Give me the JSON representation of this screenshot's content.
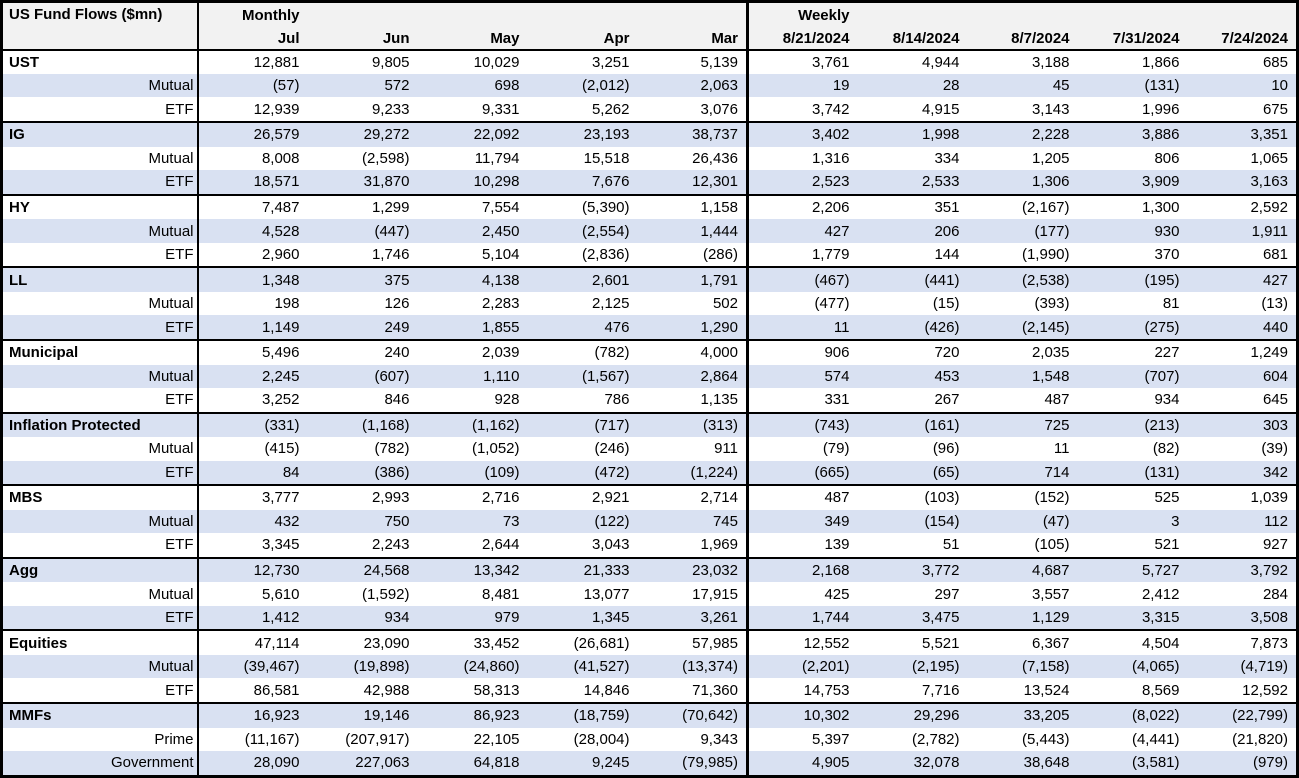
{
  "header": {
    "title": "US Fund Flows ($mn)",
    "monthly_label": "Monthly",
    "weekly_label": "Weekly"
  },
  "colors": {
    "stripe": "#d9e1f2",
    "header_bg": "#f2f2f2",
    "border": "#000000",
    "text": "#000000"
  },
  "chart_data": {
    "type": "table",
    "title": "US Fund Flows ($mn)",
    "units": "$mn",
    "column_group_labels": [
      "Monthly",
      "Weekly"
    ],
    "monthly_columns": [
      "Jul",
      "Jun",
      "May",
      "Apr",
      "Mar"
    ],
    "weekly_columns": [
      "8/21/2024",
      "8/14/2024",
      "8/7/2024",
      "7/31/2024",
      "7/24/2024"
    ],
    "negative_format": "parentheses",
    "groups": [
      {
        "name": "UST",
        "rows": [
          {
            "label": "UST",
            "header": true,
            "monthly": [
              "12,881",
              "9,805",
              "10,029",
              "3,251",
              "5,139"
            ],
            "weekly": [
              "3,761",
              "4,944",
              "3,188",
              "1,866",
              "685"
            ]
          },
          {
            "label": "Mutual",
            "header": false,
            "monthly": [
              "(57)",
              "572",
              "698",
              "(2,012)",
              "2,063"
            ],
            "weekly": [
              "19",
              "28",
              "45",
              "(131)",
              "10"
            ]
          },
          {
            "label": "ETF",
            "header": false,
            "monthly": [
              "12,939",
              "9,233",
              "9,331",
              "5,262",
              "3,076"
            ],
            "weekly": [
              "3,742",
              "4,915",
              "3,143",
              "1,996",
              "675"
            ]
          }
        ]
      },
      {
        "name": "IG",
        "rows": [
          {
            "label": "IG",
            "header": true,
            "monthly": [
              "26,579",
              "29,272",
              "22,092",
              "23,193",
              "38,737"
            ],
            "weekly": [
              "3,402",
              "1,998",
              "2,228",
              "3,886",
              "3,351"
            ]
          },
          {
            "label": "Mutual",
            "header": false,
            "monthly": [
              "8,008",
              "(2,598)",
              "11,794",
              "15,518",
              "26,436"
            ],
            "weekly": [
              "1,316",
              "334",
              "1,205",
              "806",
              "1,065"
            ]
          },
          {
            "label": "ETF",
            "header": false,
            "monthly": [
              "18,571",
              "31,870",
              "10,298",
              "7,676",
              "12,301"
            ],
            "weekly": [
              "2,523",
              "2,533",
              "1,306",
              "3,909",
              "3,163"
            ]
          }
        ]
      },
      {
        "name": "HY",
        "rows": [
          {
            "label": "HY",
            "header": true,
            "monthly": [
              "7,487",
              "1,299",
              "7,554",
              "(5,390)",
              "1,158"
            ],
            "weekly": [
              "2,206",
              "351",
              "(2,167)",
              "1,300",
              "2,592"
            ]
          },
          {
            "label": "Mutual",
            "header": false,
            "monthly": [
              "4,528",
              "(447)",
              "2,450",
              "(2,554)",
              "1,444"
            ],
            "weekly": [
              "427",
              "206",
              "(177)",
              "930",
              "1,911"
            ]
          },
          {
            "label": "ETF",
            "header": false,
            "monthly": [
              "2,960",
              "1,746",
              "5,104",
              "(2,836)",
              "(286)"
            ],
            "weekly": [
              "1,779",
              "144",
              "(1,990)",
              "370",
              "681"
            ]
          }
        ]
      },
      {
        "name": "LL",
        "rows": [
          {
            "label": "LL",
            "header": true,
            "monthly": [
              "1,348",
              "375",
              "4,138",
              "2,601",
              "1,791"
            ],
            "weekly": [
              "(467)",
              "(441)",
              "(2,538)",
              "(195)",
              "427"
            ]
          },
          {
            "label": "Mutual",
            "header": false,
            "monthly": [
              "198",
              "126",
              "2,283",
              "2,125",
              "502"
            ],
            "weekly": [
              "(477)",
              "(15)",
              "(393)",
              "81",
              "(13)"
            ]
          },
          {
            "label": "ETF",
            "header": false,
            "monthly": [
              "1,149",
              "249",
              "1,855",
              "476",
              "1,290"
            ],
            "weekly": [
              "11",
              "(426)",
              "(2,145)",
              "(275)",
              "440"
            ]
          }
        ]
      },
      {
        "name": "Municipal",
        "rows": [
          {
            "label": "Municipal",
            "header": true,
            "monthly": [
              "5,496",
              "240",
              "2,039",
              "(782)",
              "4,000"
            ],
            "weekly": [
              "906",
              "720",
              "2,035",
              "227",
              "1,249"
            ]
          },
          {
            "label": "Mutual",
            "header": false,
            "monthly": [
              "2,245",
              "(607)",
              "1,110",
              "(1,567)",
              "2,864"
            ],
            "weekly": [
              "574",
              "453",
              "1,548",
              "(707)",
              "604"
            ]
          },
          {
            "label": "ETF",
            "header": false,
            "monthly": [
              "3,252",
              "846",
              "928",
              "786",
              "1,135"
            ],
            "weekly": [
              "331",
              "267",
              "487",
              "934",
              "645"
            ]
          }
        ]
      },
      {
        "name": "Inflation Protected",
        "rows": [
          {
            "label": "Inflation Protected",
            "header": true,
            "monthly": [
              "(331)",
              "(1,168)",
              "(1,162)",
              "(717)",
              "(313)"
            ],
            "weekly": [
              "(743)",
              "(161)",
              "725",
              "(213)",
              "303"
            ]
          },
          {
            "label": "Mutual",
            "header": false,
            "monthly": [
              "(415)",
              "(782)",
              "(1,052)",
              "(246)",
              "911"
            ],
            "weekly": [
              "(79)",
              "(96)",
              "11",
              "(82)",
              "(39)"
            ]
          },
          {
            "label": "ETF",
            "header": false,
            "monthly": [
              "84",
              "(386)",
              "(109)",
              "(472)",
              "(1,224)"
            ],
            "weekly": [
              "(665)",
              "(65)",
              "714",
              "(131)",
              "342"
            ]
          }
        ]
      },
      {
        "name": "MBS",
        "rows": [
          {
            "label": "MBS",
            "header": true,
            "monthly": [
              "3,777",
              "2,993",
              "2,716",
              "2,921",
              "2,714"
            ],
            "weekly": [
              "487",
              "(103)",
              "(152)",
              "525",
              "1,039"
            ]
          },
          {
            "label": "Mutual",
            "header": false,
            "monthly": [
              "432",
              "750",
              "73",
              "(122)",
              "745"
            ],
            "weekly": [
              "349",
              "(154)",
              "(47)",
              "3",
              "112"
            ]
          },
          {
            "label": "ETF",
            "header": false,
            "monthly": [
              "3,345",
              "2,243",
              "2,644",
              "3,043",
              "1,969"
            ],
            "weekly": [
              "139",
              "51",
              "(105)",
              "521",
              "927"
            ]
          }
        ]
      },
      {
        "name": "Agg",
        "rows": [
          {
            "label": "Agg",
            "header": true,
            "monthly": [
              "12,730",
              "24,568",
              "13,342",
              "21,333",
              "23,032"
            ],
            "weekly": [
              "2,168",
              "3,772",
              "4,687",
              "5,727",
              "3,792"
            ]
          },
          {
            "label": "Mutual",
            "header": false,
            "monthly": [
              "5,610",
              "(1,592)",
              "8,481",
              "13,077",
              "17,915"
            ],
            "weekly": [
              "425",
              "297",
              "3,557",
              "2,412",
              "284"
            ]
          },
          {
            "label": "ETF",
            "header": false,
            "monthly": [
              "1,412",
              "934",
              "979",
              "1,345",
              "3,261"
            ],
            "weekly": [
              "1,744",
              "3,475",
              "1,129",
              "3,315",
              "3,508"
            ]
          }
        ]
      },
      {
        "name": "Equities",
        "rows": [
          {
            "label": "Equities",
            "header": true,
            "monthly": [
              "47,114",
              "23,090",
              "33,452",
              "(26,681)",
              "57,985"
            ],
            "weekly": [
              "12,552",
              "5,521",
              "6,367",
              "4,504",
              "7,873"
            ]
          },
          {
            "label": "Mutual",
            "header": false,
            "monthly": [
              "(39,467)",
              "(19,898)",
              "(24,860)",
              "(41,527)",
              "(13,374)"
            ],
            "weekly": [
              "(2,201)",
              "(2,195)",
              "(7,158)",
              "(4,065)",
              "(4,719)"
            ]
          },
          {
            "label": "ETF",
            "header": false,
            "monthly": [
              "86,581",
              "42,988",
              "58,313",
              "14,846",
              "71,360"
            ],
            "weekly": [
              "14,753",
              "7,716",
              "13,524",
              "8,569",
              "12,592"
            ]
          }
        ]
      },
      {
        "name": "MMFs",
        "rows": [
          {
            "label": "MMFs",
            "header": true,
            "monthly": [
              "16,923",
              "19,146",
              "86,923",
              "(18,759)",
              "(70,642)"
            ],
            "weekly": [
              "10,302",
              "29,296",
              "33,205",
              "(8,022)",
              "(22,799)"
            ]
          },
          {
            "label": "Prime",
            "header": false,
            "monthly": [
              "(11,167)",
              "(207,917)",
              "22,105",
              "(28,004)",
              "9,343"
            ],
            "weekly": [
              "5,397",
              "(2,782)",
              "(5,443)",
              "(4,441)",
              "(21,820)"
            ]
          },
          {
            "label": "Government",
            "header": false,
            "monthly": [
              "28,090",
              "227,063",
              "64,818",
              "9,245",
              "(79,985)"
            ],
            "weekly": [
              "4,905",
              "32,078",
              "38,648",
              "(3,581)",
              "(979)"
            ]
          }
        ]
      }
    ]
  }
}
